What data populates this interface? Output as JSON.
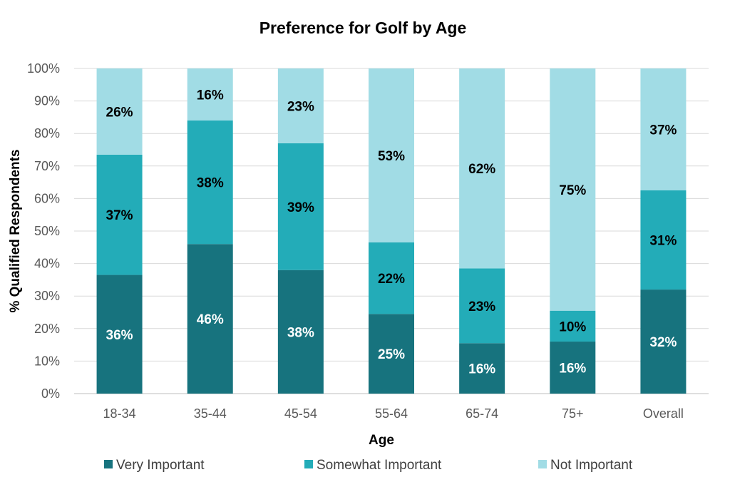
{
  "chart_data": {
    "type": "bar",
    "stacked": true,
    "title": "Preference for Golf by Age",
    "xlabel": "Age",
    "ylabel": "% Qualified Respondents",
    "ylim": [
      0,
      100
    ],
    "yticks": [
      "0%",
      "10%",
      "20%",
      "30%",
      "40%",
      "50%",
      "60%",
      "70%",
      "80%",
      "90%",
      "100%"
    ],
    "categories": [
      "18-34",
      "35-44",
      "45-54",
      "55-64",
      "65-74",
      "75+",
      "Overall"
    ],
    "series": [
      {
        "name": "Very Important",
        "color": "#17737E",
        "label_color": "#ffffff",
        "values": [
          36.5,
          46,
          38,
          24.5,
          15.5,
          16,
          32
        ],
        "labels": [
          "36%",
          "46%",
          "38%",
          "25%",
          "16%",
          "16%",
          "32%"
        ]
      },
      {
        "name": "Somewhat Important",
        "color": "#23ACB8",
        "label_color": "#000000",
        "values": [
          37,
          38,
          39,
          22,
          23,
          9.5,
          30.5
        ],
        "labels": [
          "37%",
          "38%",
          "39%",
          "22%",
          "23%",
          "10%",
          "31%"
        ]
      },
      {
        "name": "Not Important",
        "color": "#A1DCE5",
        "label_color": "#000000",
        "values": [
          26.5,
          16,
          23,
          53.5,
          61.5,
          74.5,
          37.5
        ],
        "labels": [
          "26%",
          "16%",
          "23%",
          "53%",
          "62%",
          "75%",
          "37%"
        ]
      }
    ],
    "grid": true,
    "legend_position": "bottom"
  }
}
